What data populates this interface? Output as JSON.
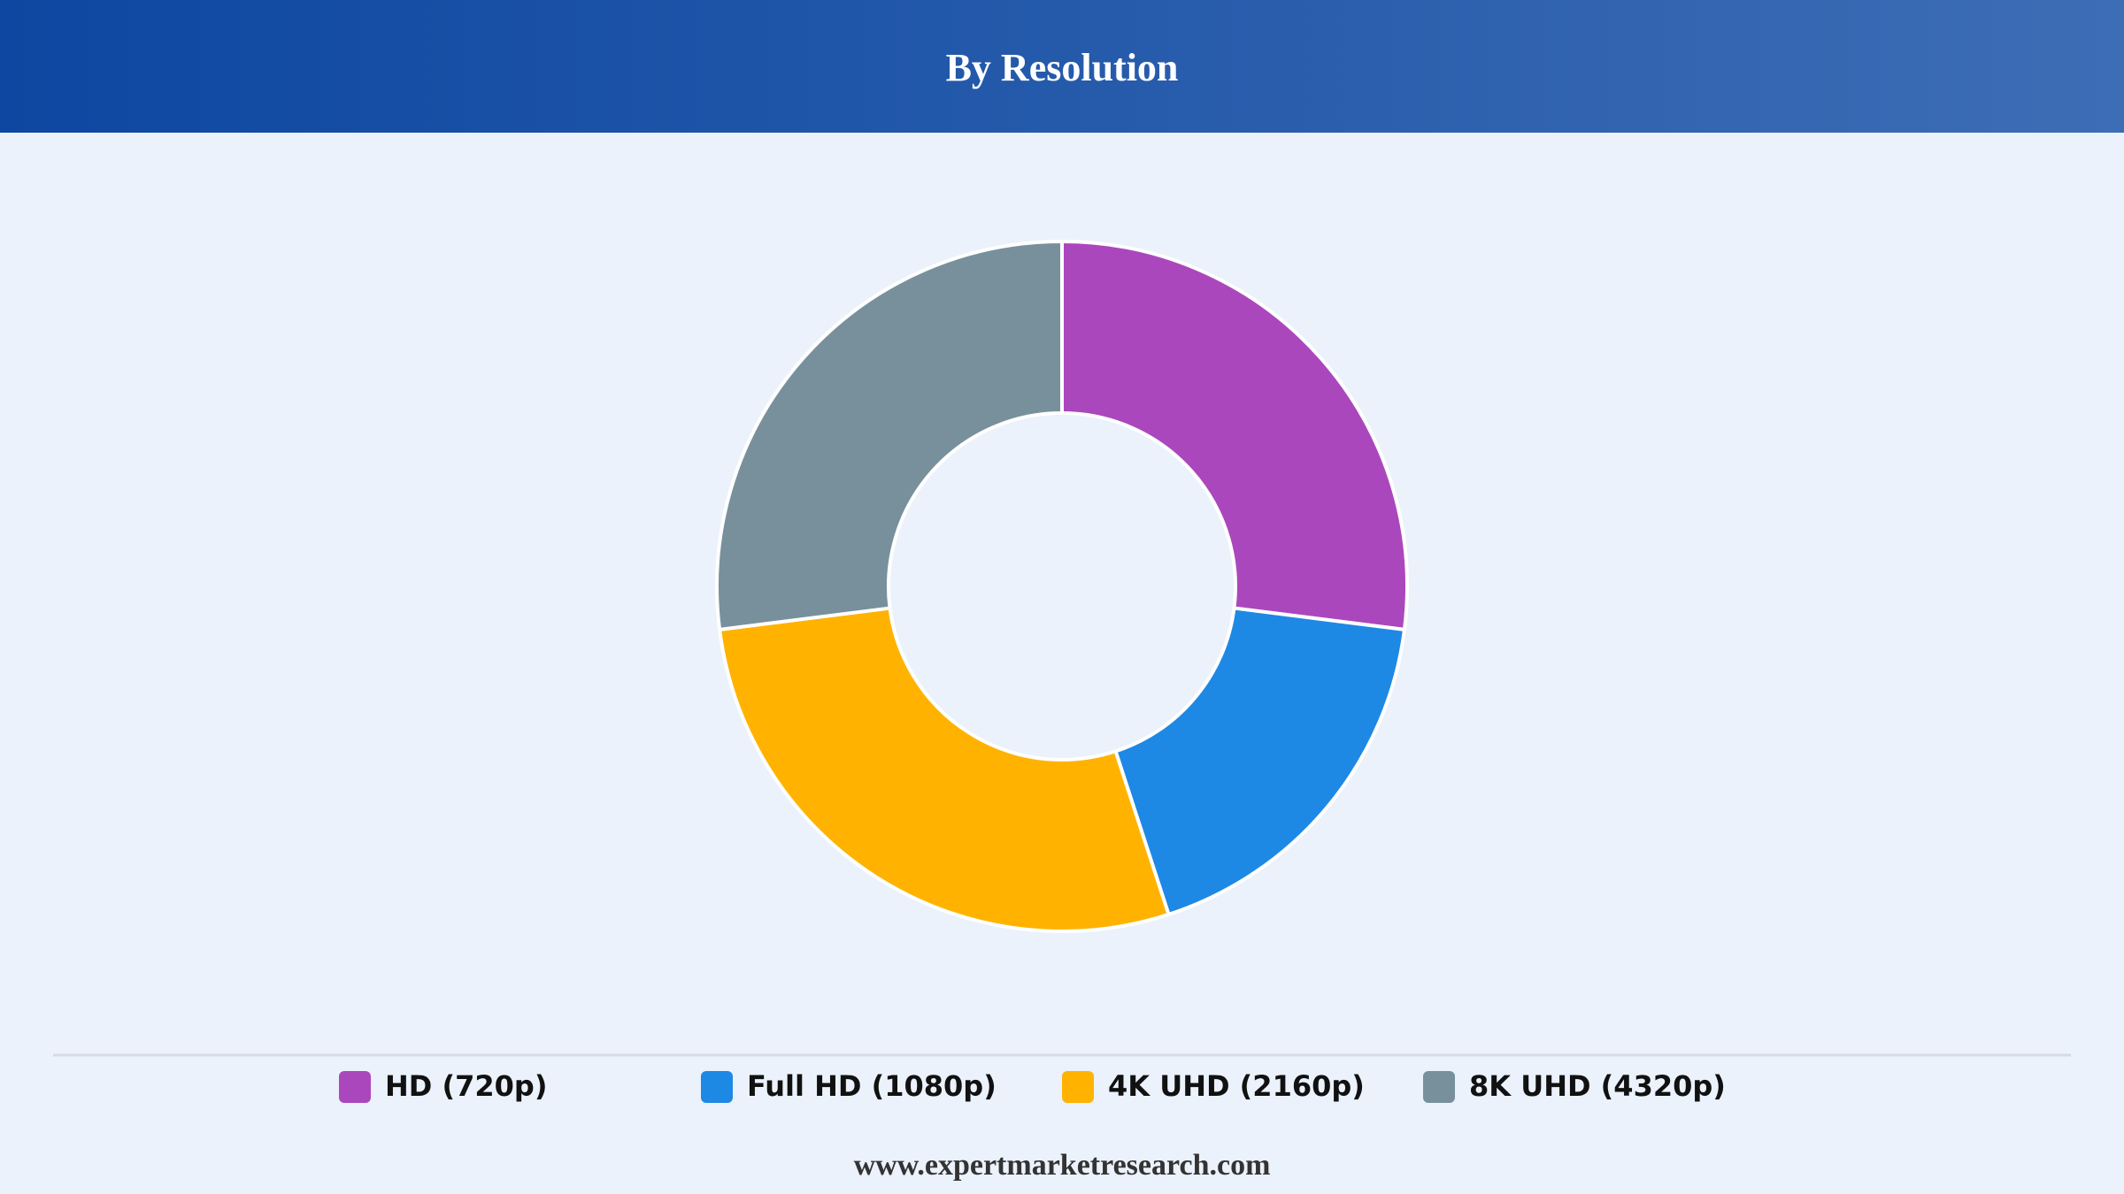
{
  "chart_data": {
    "type": "donut",
    "title": "By Resolution",
    "categories": [
      "HD (720p)",
      "Full HD (1080p)",
      "4K UHD (2160p)",
      "8K UHD (4320p)"
    ],
    "values": [
      27,
      18,
      28,
      27
    ],
    "colors": [
      "#ab47bc",
      "#1e88e5",
      "#ffb300",
      "#78909c"
    ],
    "source": "www.expertmarketresearch.com"
  }
}
